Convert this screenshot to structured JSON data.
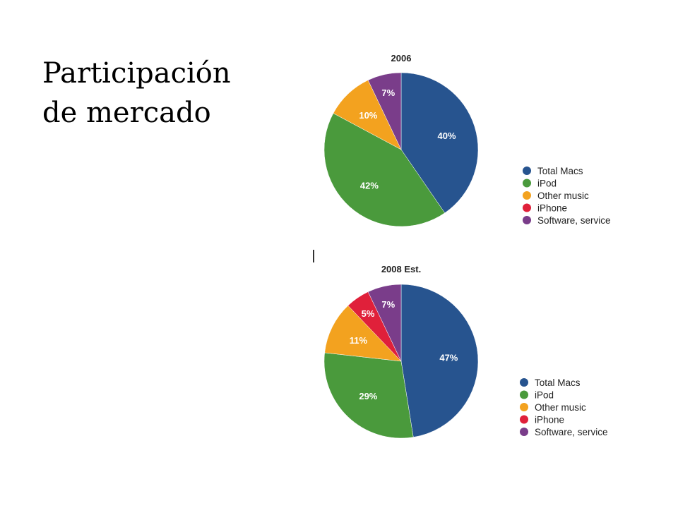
{
  "slide": {
    "title_line1": "Participación",
    "title_line2": "de mercado"
  },
  "chart_data": [
    {
      "type": "pie",
      "title": "2006",
      "categories": [
        "Total Macs",
        "iPod",
        "Other music",
        "iPhone",
        "Software, service"
      ],
      "values": [
        40,
        42,
        10,
        0,
        7
      ],
      "labels": [
        "40%",
        "42%",
        "10%",
        "",
        "7%"
      ],
      "colors": [
        "#27548f",
        "#4a9a3c",
        "#f3a21f",
        "#e0203a",
        "#7a3d8a"
      ],
      "legend_position": "right"
    },
    {
      "type": "pie",
      "title": "2008 Est.",
      "categories": [
        "Total Macs",
        "iPod",
        "Other music",
        "iPhone",
        "Software, service"
      ],
      "values": [
        47,
        29,
        11,
        5,
        7
      ],
      "labels": [
        "47%",
        "29%",
        "11%",
        "5%",
        "7%"
      ],
      "colors": [
        "#27548f",
        "#4a9a3c",
        "#f3a21f",
        "#e0203a",
        "#7a3d8a"
      ],
      "legend_position": "right"
    }
  ]
}
